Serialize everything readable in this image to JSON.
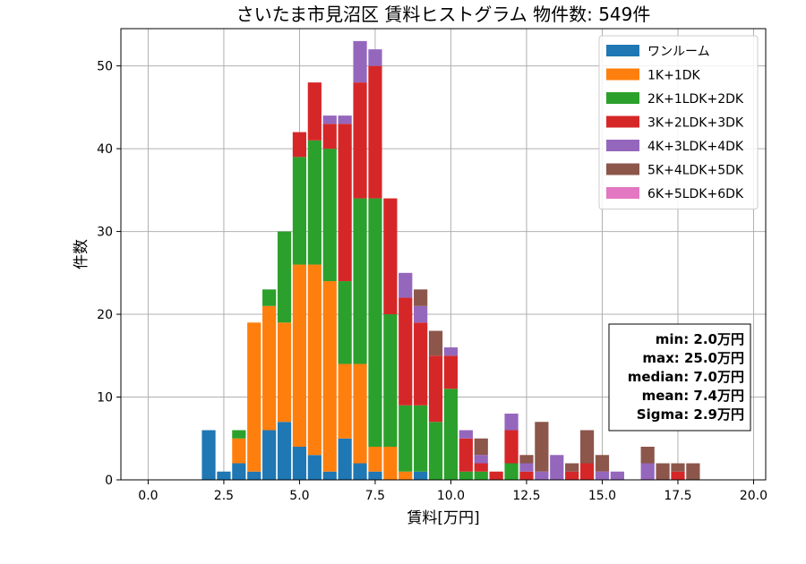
{
  "chart_data": {
    "type": "bar",
    "stacked": true,
    "title": "さいたま市見沼区 賃料ヒストグラム 物件数: 549件",
    "xlabel": "賃料[万円]",
    "ylabel": "件数",
    "xlim": [
      -0.9,
      20.4
    ],
    "ylim": [
      0,
      54.5
    ],
    "xticks": [
      0,
      2.5,
      5,
      7.5,
      10,
      12.5,
      15,
      17.5,
      20
    ],
    "xtick_labels": [
      "0.0",
      "2.5",
      "5.0",
      "7.5",
      "10.0",
      "12.5",
      "15.0",
      "17.5",
      "20.0"
    ],
    "yticks": [
      0,
      10,
      20,
      30,
      40,
      50
    ],
    "ytick_labels": [
      "0",
      "10",
      "20",
      "30",
      "40",
      "50"
    ],
    "grid": true,
    "legend_position": "top-right",
    "bin_width": 0.5,
    "x": [
      2.0,
      2.5,
      3.0,
      3.5,
      4.0,
      4.5,
      5.0,
      5.5,
      6.0,
      6.5,
      7.0,
      7.5,
      8.0,
      8.5,
      9.0,
      9.5,
      10.0,
      10.5,
      11.0,
      11.5,
      12.0,
      12.5,
      13.0,
      13.5,
      14.0,
      14.5,
      15.0,
      15.5,
      16.0,
      16.5,
      17.0,
      17.5,
      18.0
    ],
    "series": [
      {
        "name": "ワンルーム",
        "color": "#1f77b4",
        "values": [
          6,
          1,
          2,
          1,
          6,
          7,
          4,
          3,
          1,
          5,
          2,
          1,
          0,
          0,
          1,
          0,
          0,
          0,
          0,
          0,
          0,
          0,
          0,
          0,
          0,
          0,
          0,
          0,
          0,
          0,
          0,
          0,
          0
        ]
      },
      {
        "name": "1K+1DK",
        "color": "#ff7f0e",
        "values": [
          0,
          0,
          3,
          18,
          15,
          12,
          22,
          23,
          23,
          9,
          12,
          3,
          4,
          1,
          0,
          0,
          0,
          0,
          0,
          0,
          0,
          0,
          0,
          0,
          0,
          0,
          0,
          0,
          0,
          0,
          0,
          0,
          0
        ]
      },
      {
        "name": "2K+1LDK+2DK",
        "color": "#2ca02c",
        "values": [
          0,
          0,
          1,
          0,
          2,
          11,
          13,
          15,
          16,
          10,
          20,
          30,
          16,
          8,
          8,
          7,
          11,
          1,
          1,
          0,
          2,
          0,
          0,
          0,
          0,
          0,
          0,
          0,
          0,
          0,
          0,
          0,
          0
        ]
      },
      {
        "name": "3K+2LDK+3DK",
        "color": "#d62728",
        "values": [
          0,
          0,
          0,
          0,
          0,
          0,
          3,
          7,
          3,
          19,
          14,
          16,
          14,
          13,
          10,
          8,
          4,
          4,
          1,
          1,
          4,
          1,
          0,
          0,
          1,
          2,
          0,
          0,
          0,
          0,
          0,
          1,
          0
        ]
      },
      {
        "name": "4K+3LDK+4DK",
        "color": "#9467bd",
        "values": [
          0,
          0,
          0,
          0,
          0,
          0,
          0,
          0,
          1,
          1,
          5,
          2,
          0,
          3,
          2,
          0,
          1,
          1,
          1,
          0,
          2,
          1,
          1,
          3,
          0,
          0,
          1,
          1,
          0,
          2,
          0,
          0,
          0
        ]
      },
      {
        "name": "5K+4LDK+5DK",
        "color": "#8c564b",
        "values": [
          0,
          0,
          0,
          0,
          0,
          0,
          0,
          0,
          0,
          0,
          0,
          0,
          0,
          0,
          2,
          3,
          0,
          0,
          2,
          0,
          0,
          1,
          6,
          0,
          1,
          4,
          2,
          0,
          0,
          2,
          2,
          1,
          2
        ]
      },
      {
        "name": "6K+5LDK+6DK",
        "color": "#e377c2",
        "values": [
          0,
          0,
          0,
          0,
          0,
          0,
          0,
          0,
          0,
          0,
          0,
          0,
          0,
          0,
          0,
          0,
          0,
          0,
          0,
          0,
          0,
          0,
          0,
          0,
          0,
          0,
          0,
          0,
          0,
          0,
          0,
          0,
          0
        ]
      }
    ],
    "stats": [
      "min: 2.0万円",
      "max: 25.0万円",
      "median: 7.0万円",
      "mean: 7.4万円",
      "Sigma: 2.9万円"
    ]
  }
}
